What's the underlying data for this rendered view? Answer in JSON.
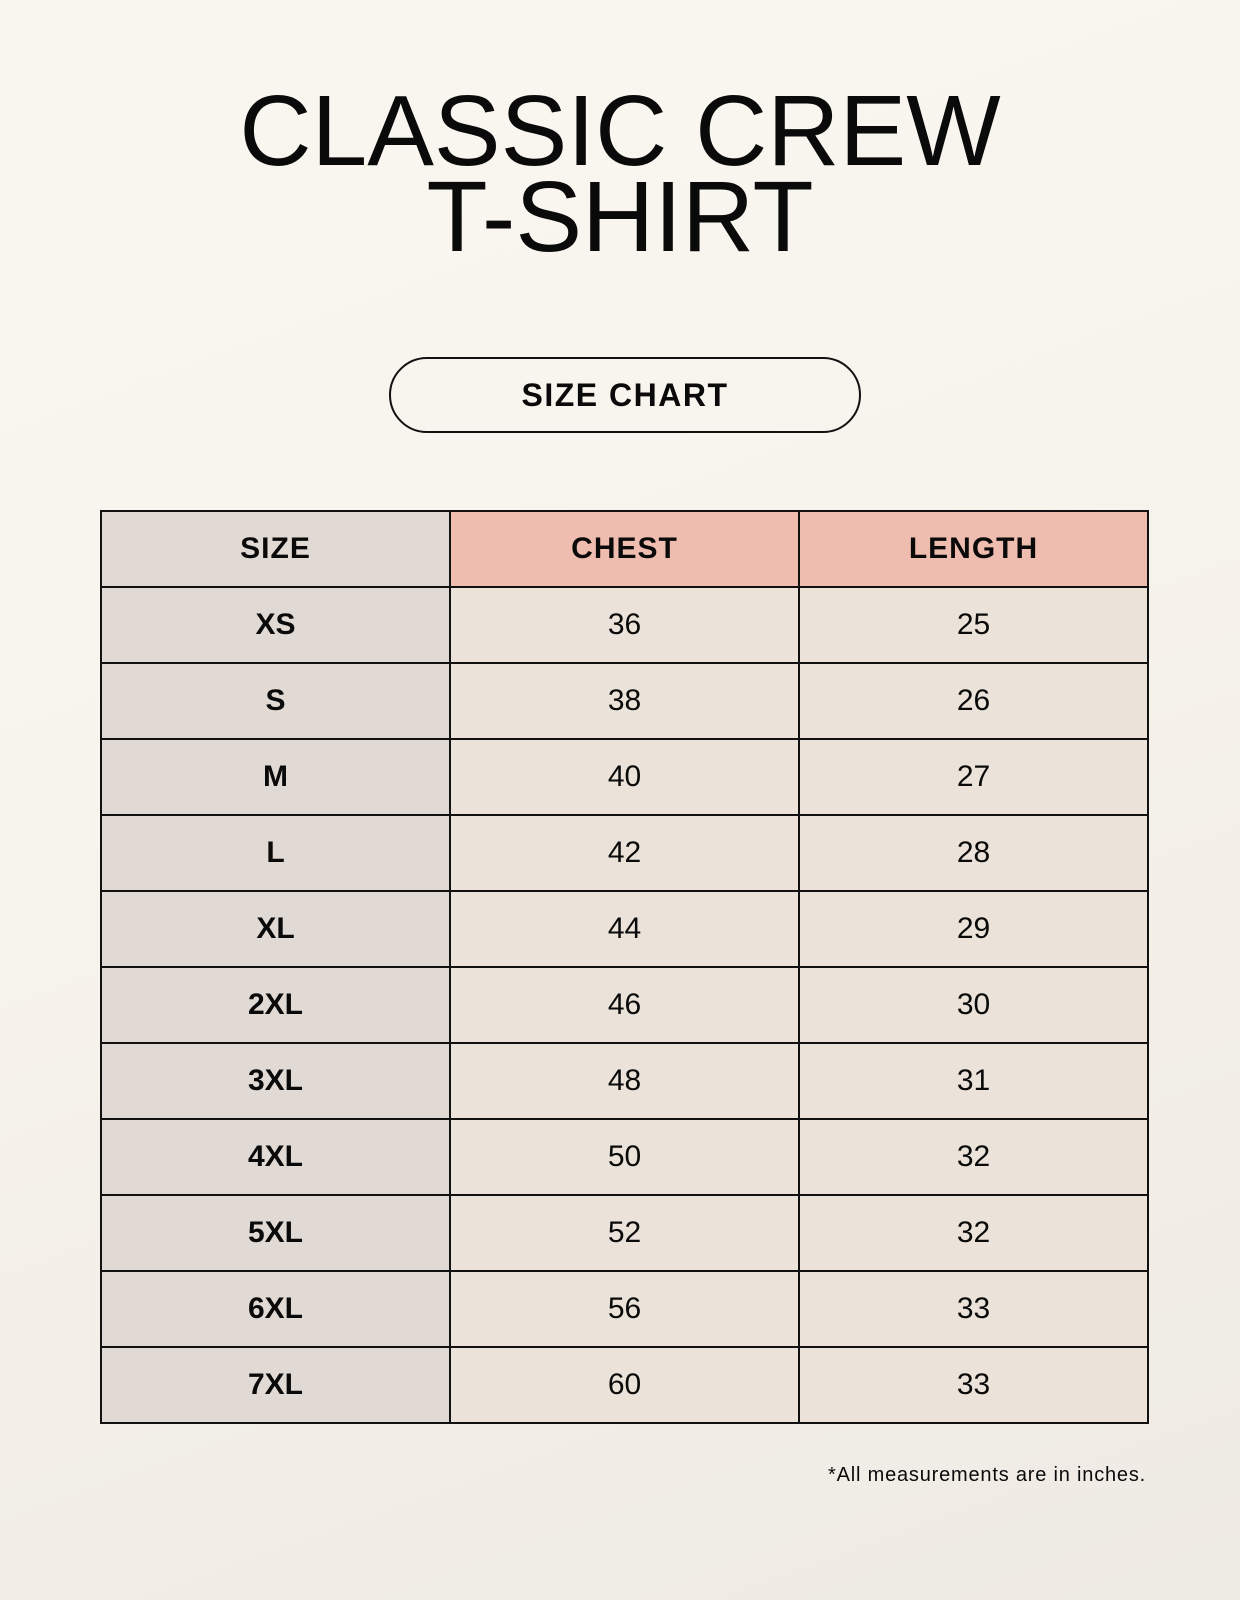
{
  "title": {
    "line1": "CLASSIC CREW",
    "line2": "T-SHIRT"
  },
  "badge": "SIZE CHART",
  "table": {
    "headers": [
      "SIZE",
      "CHEST",
      "LENGTH"
    ],
    "rows": [
      [
        "XS",
        "36",
        "25"
      ],
      [
        "S",
        "38",
        "26"
      ],
      [
        "M",
        "40",
        "27"
      ],
      [
        "L",
        "42",
        "28"
      ],
      [
        "XL",
        "44",
        "29"
      ],
      [
        "2XL",
        "46",
        "30"
      ],
      [
        "3XL",
        "48",
        "31"
      ],
      [
        "4XL",
        "50",
        "32"
      ],
      [
        "5XL",
        "52",
        "32"
      ],
      [
        "6XL",
        "56",
        "33"
      ],
      [
        "7XL",
        "60",
        "33"
      ]
    ]
  },
  "footnote": "*All measurements are in inches.",
  "colors": {
    "background": "#f8f5ef",
    "size_column": "#e1d9d4",
    "header_accent": "#efbdb0",
    "value_cells": "#ebe3d9"
  }
}
